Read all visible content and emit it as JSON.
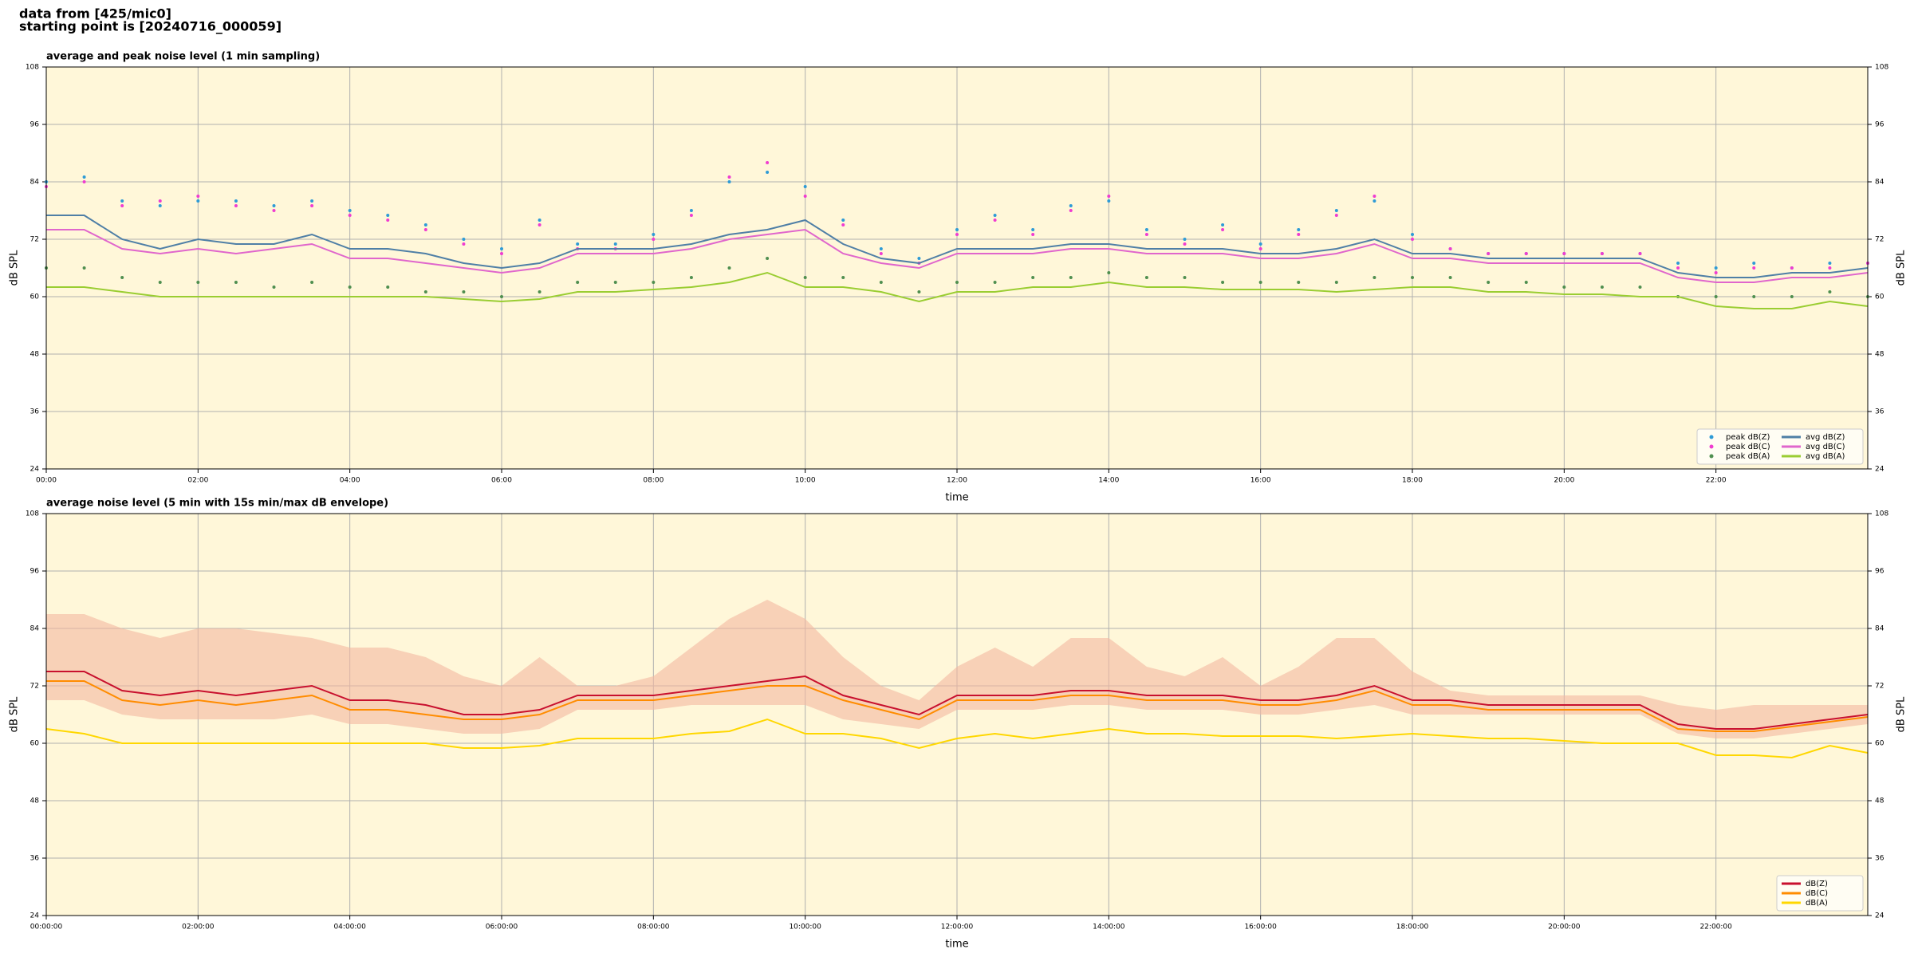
{
  "header": {
    "line1": "data from [425/mic0]",
    "line2": "starting point is [20240716_000059]"
  },
  "chart_data": [
    {
      "type": "line",
      "title": "average and peak noise level (1 min sampling)",
      "xlabel": "time",
      "ylabel": "dB SPL",
      "xlim": [
        0,
        24
      ],
      "ylim": [
        24,
        108
      ],
      "yticks": [
        24,
        36,
        48,
        60,
        72,
        84,
        96,
        108
      ],
      "xticks": [
        {
          "value": 0,
          "label": "00:00"
        },
        {
          "value": 2,
          "label": "02:00"
        },
        {
          "value": 4,
          "label": "04:00"
        },
        {
          "value": 6,
          "label": "06:00"
        },
        {
          "value": 8,
          "label": "08:00"
        },
        {
          "value": 10,
          "label": "10:00"
        },
        {
          "value": 12,
          "label": "12:00"
        },
        {
          "value": 14,
          "label": "14:00"
        },
        {
          "value": 16,
          "label": "16:00"
        },
        {
          "value": 18,
          "label": "18:00"
        },
        {
          "value": 20,
          "label": "20:00"
        },
        {
          "value": 22,
          "label": "22:00"
        }
      ],
      "grid": true,
      "legend": "lower right",
      "background": "#fff7d9",
      "x": [
        0,
        0.5,
        1,
        1.5,
        2,
        2.5,
        3,
        3.5,
        4,
        4.5,
        5,
        5.5,
        6,
        6.5,
        7,
        7.5,
        8,
        8.5,
        9,
        9.5,
        10,
        10.5,
        11,
        11.5,
        12,
        12.5,
        13,
        13.5,
        14,
        14.5,
        15,
        15.5,
        16,
        16.5,
        17,
        17.5,
        18,
        18.5,
        19,
        19.5,
        20,
        20.5,
        21,
        21.5,
        22,
        22.5,
        23,
        23.5,
        24
      ],
      "series": [
        {
          "name": "peak dB(Z)",
          "type": "scatter",
          "color": "#2e9bd6",
          "values": [
            84,
            85,
            80,
            79,
            80,
            80,
            79,
            80,
            78,
            77,
            75,
            72,
            70,
            76,
            71,
            71,
            73,
            78,
            84,
            86,
            83,
            76,
            70,
            68,
            74,
            77,
            74,
            79,
            80,
            74,
            72,
            75,
            71,
            74,
            78,
            80,
            73,
            70,
            69,
            69,
            69,
            69,
            69,
            67,
            66,
            67,
            66,
            67,
            67
          ]
        },
        {
          "name": "peak dB(C)",
          "type": "scatter",
          "color": "#f03cd0",
          "values": [
            83,
            84,
            79,
            80,
            81,
            79,
            78,
            79,
            77,
            76,
            74,
            71,
            69,
            75,
            70,
            70,
            72,
            77,
            85,
            88,
            81,
            75,
            69,
            67,
            73,
            76,
            73,
            78,
            81,
            73,
            71,
            74,
            70,
            73,
            77,
            81,
            72,
            70,
            69,
            69,
            69,
            69,
            69,
            66,
            65,
            66,
            66,
            66,
            67
          ]
        },
        {
          "name": "peak dB(A)",
          "type": "scatter",
          "color": "#4f8f4f",
          "values": [
            66,
            66,
            64,
            63,
            63,
            63,
            62,
            63,
            62,
            62,
            61,
            61,
            60,
            61,
            63,
            63,
            63,
            64,
            66,
            68,
            64,
            64,
            63,
            61,
            63,
            63,
            64,
            64,
            65,
            64,
            64,
            63,
            63,
            63,
            63,
            64,
            64,
            64,
            63,
            63,
            62,
            62,
            62,
            60,
            60,
            60,
            60,
            61,
            60
          ]
        },
        {
          "name": "avg dB(Z)",
          "type": "line",
          "color": "#4f7fa6",
          "values": [
            77,
            77,
            72,
            70,
            72,
            71,
            71,
            73,
            70,
            70,
            69,
            67,
            66,
            67,
            70,
            70,
            70,
            71,
            73,
            74,
            76,
            71,
            68,
            67,
            70,
            70,
            70,
            71,
            71,
            70,
            70,
            70,
            69,
            69,
            70,
            72,
            69,
            69,
            68,
            68,
            68,
            68,
            68,
            65,
            64,
            64,
            65,
            65,
            66
          ]
        },
        {
          "name": "avg dB(C)",
          "type": "line",
          "color": "#e066cc",
          "values": [
            74,
            74,
            70,
            69,
            70,
            69,
            70,
            71,
            68,
            68,
            67,
            66,
            65,
            66,
            69,
            69,
            69,
            70,
            72,
            73,
            74,
            69,
            67,
            66,
            69,
            69,
            69,
            70,
            70,
            69,
            69,
            69,
            68,
            68,
            69,
            71,
            68,
            68,
            67,
            67,
            67,
            67,
            67,
            64,
            63,
            63,
            64,
            64,
            65
          ]
        },
        {
          "name": "avg dB(A)",
          "type": "line",
          "color": "#9acd32",
          "values": [
            62,
            62,
            61,
            60,
            60,
            60,
            60,
            60,
            60,
            60,
            60,
            59.5,
            59,
            59.5,
            61,
            61,
            61.5,
            62,
            63,
            65,
            62,
            62,
            61,
            59,
            61,
            61,
            62,
            62,
            63,
            62,
            62,
            61.5,
            61.5,
            61.5,
            61,
            61.5,
            62,
            62,
            61,
            61,
            60.5,
            60.5,
            60,
            60,
            58,
            57.5,
            57.5,
            59,
            58
          ]
        }
      ]
    },
    {
      "type": "line",
      "title": "average noise level (5 min with 15s min/max dB envelope)",
      "xlabel": "time",
      "ylabel": "dB SPL",
      "xlim": [
        0,
        24
      ],
      "ylim": [
        24,
        108
      ],
      "yticks": [
        24,
        36,
        48,
        60,
        72,
        84,
        96,
        108
      ],
      "xticks": [
        {
          "value": 0,
          "label": "00:00:00"
        },
        {
          "value": 2,
          "label": "02:00:00"
        },
        {
          "value": 4,
          "label": "04:00:00"
        },
        {
          "value": 6,
          "label": "06:00:00"
        },
        {
          "value": 8,
          "label": "08:00:00"
        },
        {
          "value": 10,
          "label": "10:00:00"
        },
        {
          "value": 12,
          "label": "12:00:00"
        },
        {
          "value": 14,
          "label": "14:00:00"
        },
        {
          "value": 16,
          "label": "16:00:00"
        },
        {
          "value": 18,
          "label": "18:00:00"
        },
        {
          "value": 20,
          "label": "20:00:00"
        },
        {
          "value": 22,
          "label": "22:00:00"
        }
      ],
      "grid": true,
      "legend": "lower right",
      "background": "#fff7d9",
      "x": [
        0,
        0.5,
        1,
        1.5,
        2,
        2.5,
        3,
        3.5,
        4,
        4.5,
        5,
        5.5,
        6,
        6.5,
        7,
        7.5,
        8,
        8.5,
        9,
        9.5,
        10,
        10.5,
        11,
        11.5,
        12,
        12.5,
        13,
        13.5,
        14,
        14.5,
        15,
        15.5,
        16,
        16.5,
        17,
        17.5,
        18,
        18.5,
        19,
        19.5,
        20,
        20.5,
        21,
        21.5,
        22,
        22.5,
        23,
        23.5,
        24
      ],
      "envelope": {
        "color": "#f4b8a0",
        "min": [
          69,
          69,
          66,
          65,
          65,
          65,
          65,
          66,
          64,
          64,
          63,
          62,
          62,
          63,
          67,
          67,
          67,
          68,
          68,
          68,
          68,
          65,
          64,
          63,
          67,
          67,
          67,
          68,
          68,
          67,
          67,
          67,
          66,
          66,
          67,
          68,
          66,
          66,
          66,
          66,
          66,
          66,
          66,
          62,
          61,
          61,
          62,
          63,
          64
        ],
        "max": [
          87,
          87,
          84,
          82,
          84,
          84,
          83,
          82,
          80,
          80,
          78,
          74,
          72,
          78,
          72,
          72,
          74,
          80,
          86,
          90,
          86,
          78,
          72,
          69,
          76,
          80,
          76,
          82,
          82,
          76,
          74,
          78,
          72,
          76,
          82,
          82,
          75,
          71,
          70,
          70,
          70,
          70,
          70,
          68,
          67,
          68,
          68,
          68,
          68
        ]
      },
      "series": [
        {
          "name": "dB(Z)",
          "type": "line",
          "color": "#c8102e",
          "values": [
            75,
            75,
            71,
            70,
            71,
            70,
            71,
            72,
            69,
            69,
            68,
            66,
            66,
            67,
            70,
            70,
            70,
            71,
            72,
            73,
            74,
            70,
            68,
            66,
            70,
            70,
            70,
            71,
            71,
            70,
            70,
            70,
            69,
            69,
            70,
            72,
            69,
            69,
            68,
            68,
            68,
            68,
            68,
            64,
            63,
            63,
            64,
            65,
            66
          ]
        },
        {
          "name": "dB(C)",
          "type": "line",
          "color": "#ff8c00",
          "values": [
            73,
            73,
            69,
            68,
            69,
            68,
            69,
            70,
            67,
            67,
            66,
            65,
            65,
            66,
            69,
            69,
            69,
            70,
            71,
            72,
            72,
            69,
            67,
            65,
            69,
            69,
            69,
            70,
            70,
            69,
            69,
            69,
            68,
            68,
            69,
            71,
            68,
            68,
            67,
            67,
            67,
            67,
            67,
            63,
            62.5,
            62.5,
            63.5,
            64.5,
            65.5
          ]
        },
        {
          "name": "dB(A)",
          "type": "line",
          "color": "#ffd700",
          "values": [
            63,
            62,
            60,
            60,
            60,
            60,
            60,
            60,
            60,
            60,
            60,
            59,
            59,
            59.5,
            61,
            61,
            61,
            62,
            62.5,
            65,
            62,
            62,
            61,
            59,
            61,
            62,
            61,
            62,
            63,
            62,
            62,
            61.5,
            61.5,
            61.5,
            61,
            61.5,
            62,
            61.5,
            61,
            61,
            60.5,
            60,
            60,
            60,
            57.5,
            57.5,
            57,
            59.5,
            58
          ]
        }
      ]
    }
  ]
}
